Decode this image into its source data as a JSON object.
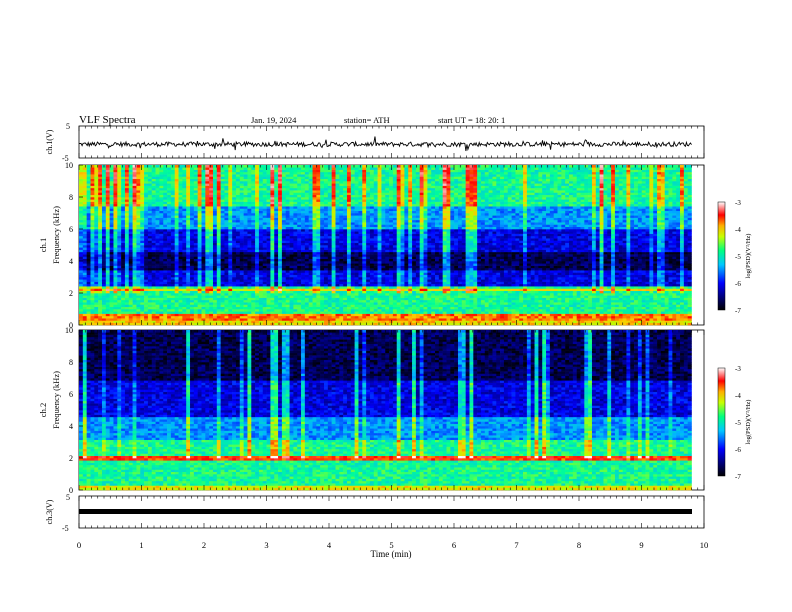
{
  "header": {
    "title": "VLF  Spectra",
    "date": "Jan.  19,  2024",
    "station": "station= ATH",
    "start": "start  UT  =    18: 20: 1"
  },
  "chart_data": [
    {
      "type": "line",
      "name": "ch1-waveform",
      "ylabel": "ch.1(V)",
      "ylim": [
        -5,
        5
      ],
      "yticks": [
        "5",
        "-5"
      ],
      "xlim": [
        0,
        10
      ],
      "baseline": -0.7,
      "color": "#000000"
    },
    {
      "type": "heatmap",
      "name": "ch1-spectrogram",
      "ylabel_top": "ch.1",
      "ylabel": "Frequency  (kHz)",
      "ylim": [
        0,
        10
      ],
      "yticks": [
        "0",
        "2",
        "4",
        "6",
        "8",
        "10"
      ],
      "xlim": [
        0,
        9.8
      ],
      "colorbar": {
        "label": "log(PSD)(V²/Hz)",
        "ticks": [
          "-3",
          "-4",
          "-5",
          "-6",
          "-7"
        ],
        "range": [
          -7,
          -3
        ]
      }
    },
    {
      "type": "heatmap",
      "name": "ch2-spectrogram",
      "ylabel_top": "ch.2",
      "ylabel": "Frequency  (kHz)",
      "ylim": [
        0,
        10
      ],
      "yticks": [
        "0",
        "2",
        "4",
        "6",
        "8",
        "10"
      ],
      "xlim": [
        0,
        9.8
      ],
      "colorbar": {
        "label": "log(PSD)(V²/Hz)",
        "ticks": [
          "-3",
          "-4",
          "-5",
          "-6",
          "-7"
        ],
        "range": [
          -7,
          -3
        ]
      }
    },
    {
      "type": "line",
      "name": "ch3-waveform",
      "ylabel": "ch.3(V)",
      "ylim": [
        -5,
        5
      ],
      "yticks": [
        "5",
        "-5"
      ],
      "xlim": [
        0,
        9.8
      ],
      "baseline": 0,
      "color": "#000000"
    }
  ],
  "xaxis": {
    "label": "Time  (min)",
    "ticks": [
      "0",
      "1",
      "2",
      "3",
      "4",
      "5",
      "6",
      "7",
      "8",
      "9",
      "10"
    ],
    "range": [
      0,
      10
    ]
  }
}
